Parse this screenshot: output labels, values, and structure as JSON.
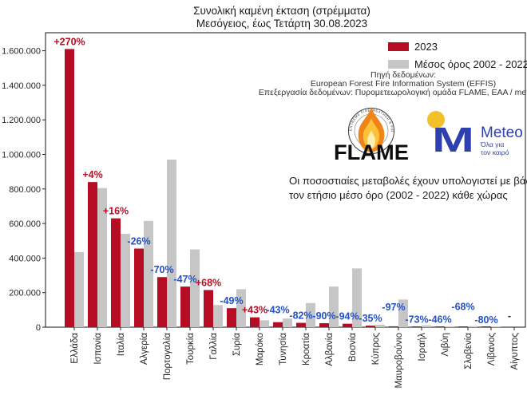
{
  "title": {
    "line1": "Συνολική καμένη έκταση (στρέμματα)",
    "line2": "Μεσόγειος, έως Τετάρτη 30.08.2023"
  },
  "legend": {
    "items": [
      {
        "label": "2023",
        "color_key": "bar_2023"
      },
      {
        "label": "Μέσος όρος 2002 - 2022",
        "color_key": "bar_avg"
      }
    ]
  },
  "source": {
    "line1": "Πηγή δεδομένων:",
    "line2": "European Forest Fire Information System (EFFIS)",
    "line3": "Επεξεργασία δεδομένων: Πυρομετεωρολογική ομάδα FLAME, ΕΑΑ / meteo.gr"
  },
  "annotation": {
    "line1": "Οι ποσοστιαίες μεταβολές έχουν υπολογιστεί με βάση",
    "line2": "τον ετήσιο μέσο όρο (2002 - 2022) κάθε χώρας"
  },
  "logos": {
    "flame": {
      "wordmark": "FLAME",
      "ring_text": "EXTREME FIRE WEATHER & FIRE BEHAVIOUR"
    },
    "meteo": {
      "wordmark": "Meteo",
      "tagline_line1": "Όλα για",
      "tagline_line2": "τον καιρό"
    }
  },
  "colors": {
    "bar_2023": "#b70d24",
    "bar_avg": "#c6c6c6",
    "pct_positive": "#b70d24",
    "pct_negative": "#2551c5",
    "axis": "#262626",
    "meteo_blue": "#2e3fae",
    "meteo_yellow": "#f2c029"
  },
  "chart_data": {
    "type": "bar",
    "title": "Συνολική καμένη έκταση (στρέμματα)",
    "subtitle": "Μεσόγειος, έως Τετάρτη 30.08.2023",
    "unit": "στρέμματα",
    "categories": [
      "Ελλάδα",
      "Ισπανία",
      "Ιταλία",
      "Αλγερία",
      "Πορτογαλία",
      "Τουρκία",
      "Γαλλία",
      "Συρία",
      "Μαρόκο",
      "Τυνησία",
      "Κροατία",
      "Αλβανία",
      "Βοσνία",
      "Κύπρος",
      "Μαυροβούνιο",
      "Ισραήλ",
      "Λιβύη",
      "Σλοβενία",
      "Λίβανος",
      "Αίγυπτος"
    ],
    "series": [
      {
        "name": "2023",
        "values": [
          1610000,
          840000,
          630000,
          455000,
          290000,
          235000,
          215000,
          110000,
          57000,
          29000,
          25000,
          23000,
          20000,
          9000,
          5000,
          3000,
          3000,
          2000,
          1000,
          0
        ]
      },
      {
        "name": "Μέσος όρος 2002 - 2022",
        "values": [
          435000,
          805000,
          540000,
          615000,
          970000,
          450000,
          128000,
          220000,
          40000,
          50000,
          140000,
          235000,
          340000,
          14000,
          160000,
          11000,
          5500,
          6000,
          5000,
          0
        ]
      }
    ],
    "pct_change_labels": [
      "+270%",
      "+4%",
      "+16%",
      "-26%",
      "-70%",
      "-47%",
      "+68%",
      "-49%",
      "+43%",
      "-43%",
      "-82%",
      "-90%",
      "-94%",
      "-35%",
      "-97%",
      "-73%",
      "-46%",
      "-68%",
      "-80%",
      "-"
    ],
    "xlabel": "",
    "ylabel": "",
    "ylim": [
      0,
      1700000
    ],
    "yticks": [
      0,
      200000,
      400000,
      600000,
      800000,
      1000000,
      1200000,
      1400000,
      1600000
    ],
    "ytick_labels": [
      "0",
      "200.000",
      "400.000",
      "600.000",
      "800.000",
      "1.000.000",
      "1.200.000",
      "1.400.000",
      "1.600.000"
    ],
    "grid": false,
    "legend_position": "upper right"
  }
}
